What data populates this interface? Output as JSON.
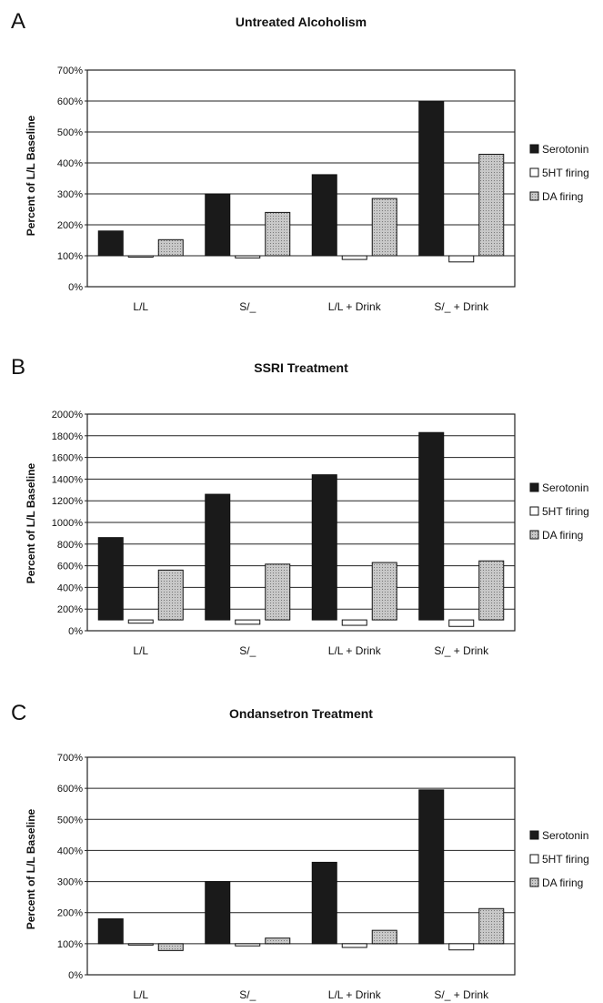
{
  "chart_data": [
    {
      "type": "bar",
      "panel_label": "A",
      "title": "Untreated Alcoholism",
      "ylabel": "Percent of L/L Baseline",
      "xlabel": "",
      "categories": [
        "L/L",
        "S/_",
        "L/L + Drink",
        "S/_ + Drink"
      ],
      "ylim": [
        0,
        700
      ],
      "yticks": [
        0,
        100,
        200,
        300,
        400,
        500,
        600,
        700
      ],
      "ytick_labels": [
        "0%",
        "100%",
        "200%",
        "300%",
        "400%",
        "500%",
        "600%",
        "700%"
      ],
      "baseline": 100,
      "grid": true,
      "legend": "right",
      "series": [
        {
          "name": "Serotonin",
          "values": [
            180,
            300,
            362,
            598
          ]
        },
        {
          "name": "5HT firing",
          "values": [
            96,
            93,
            88,
            80
          ]
        },
        {
          "name": "DA firing",
          "values": [
            152,
            240,
            285,
            428
          ]
        }
      ]
    },
    {
      "type": "bar",
      "panel_label": "B",
      "title": "SSRI Treatment",
      "ylabel": "Percent of L/L Baseline",
      "xlabel": "",
      "categories": [
        "L/L",
        "S/_",
        "L/L + Drink",
        "S/_ + Drink"
      ],
      "ylim": [
        0,
        2000
      ],
      "yticks": [
        0,
        200,
        400,
        600,
        800,
        1000,
        1200,
        1400,
        1600,
        1800,
        2000
      ],
      "ytick_labels": [
        "0%",
        "200%",
        "400%",
        "600%",
        "800%",
        "1000%",
        "1200%",
        "1400%",
        "1600%",
        "1800%",
        "2000%"
      ],
      "baseline": 100,
      "grid": true,
      "legend": "right",
      "series": [
        {
          "name": "Serotonin",
          "values": [
            860,
            1260,
            1440,
            1830
          ]
        },
        {
          "name": "5HT firing",
          "values": [
            70,
            60,
            50,
            40
          ]
        },
        {
          "name": "DA firing",
          "values": [
            560,
            615,
            630,
            645
          ]
        }
      ]
    },
    {
      "type": "bar",
      "panel_label": "C",
      "title": "Ondansetron Treatment",
      "ylabel": "Percent of L/L Baseline",
      "xlabel": "",
      "categories": [
        "L/L",
        "S/_",
        "L/L + Drink",
        "S/_ + Drink"
      ],
      "ylim": [
        0,
        700
      ],
      "yticks": [
        0,
        100,
        200,
        300,
        400,
        500,
        600,
        700
      ],
      "ytick_labels": [
        "0%",
        "100%",
        "200%",
        "300%",
        "400%",
        "500%",
        "600%",
        "700%"
      ],
      "baseline": 100,
      "grid": true,
      "legend": "right",
      "series": [
        {
          "name": "Serotonin",
          "values": [
            180,
            300,
            362,
            595
          ]
        },
        {
          "name": "5HT firing",
          "values": [
            96,
            93,
            88,
            80
          ]
        },
        {
          "name": "DA firing",
          "values": [
            78,
            118,
            143,
            213
          ]
        }
      ]
    }
  ],
  "colors": {
    "serotonin": "#1a1a1a",
    "firing_5ht": "#ffffff",
    "da_firing": "#c8c8c8",
    "gridline": "#222222"
  }
}
